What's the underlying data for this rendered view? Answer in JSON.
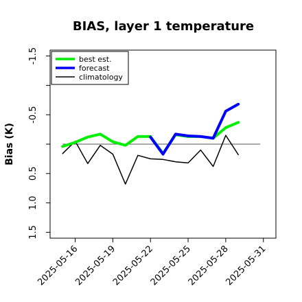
{
  "chart_data": {
    "type": "line",
    "title": "BIAS, layer 1 temperature",
    "xlabel": "",
    "ylabel": "Bias (K)",
    "ylim": [
      -1.6,
      1.6
    ],
    "xlim": [
      "2025-05-14",
      "2025-06-01"
    ],
    "yticks": [
      "-1.5",
      "-1.0",
      "-0.5",
      "0.0",
      "0.5",
      "1.0",
      "1.5"
    ],
    "yticks_shown": [
      "1.5",
      "1.0",
      "0.5",
      "",
      "-0.5",
      "",
      "-1.5"
    ],
    "xticks": [
      "2025-05-16",
      "2025-05-19",
      "2025-05-22",
      "2025-05-25",
      "2025-05-28",
      "2025-05-31"
    ],
    "xtick_highlight": {
      "label": "2025-05-22",
      "color": "#228b22"
    },
    "zero_line": true,
    "grid": false,
    "legend_position": "top-left",
    "x": [
      "2025-05-15",
      "2025-05-16",
      "2025-05-17",
      "2025-05-18",
      "2025-05-19",
      "2025-05-20",
      "2025-05-21",
      "2025-05-22",
      "2025-05-23",
      "2025-05-24",
      "2025-05-25",
      "2025-05-26",
      "2025-05-27",
      "2025-05-28",
      "2025-05-29"
    ],
    "series": [
      {
        "name": "best est.",
        "color": "#00ee00",
        "width": 4,
        "values": [
          -0.04,
          0.03,
          0.12,
          0.17,
          0.04,
          -0.02,
          0.13,
          0.13,
          -0.16,
          0.16,
          0.13,
          0.13,
          0.1,
          0.28,
          0.37
        ]
      },
      {
        "name": "forecast",
        "color": "#0000ff",
        "width": 4,
        "values": [
          null,
          null,
          null,
          null,
          null,
          null,
          null,
          0.12,
          -0.17,
          0.17,
          0.14,
          0.13,
          0.1,
          0.56,
          0.68
        ]
      },
      {
        "name": "climatology",
        "color": "#000000",
        "width": 1.5,
        "values": [
          -0.16,
          0.05,
          -0.33,
          -0.02,
          -0.17,
          -0.68,
          -0.19,
          -0.25,
          -0.26,
          -0.3,
          -0.32,
          -0.1,
          -0.38,
          0.15,
          -0.18
        ]
      }
    ]
  }
}
